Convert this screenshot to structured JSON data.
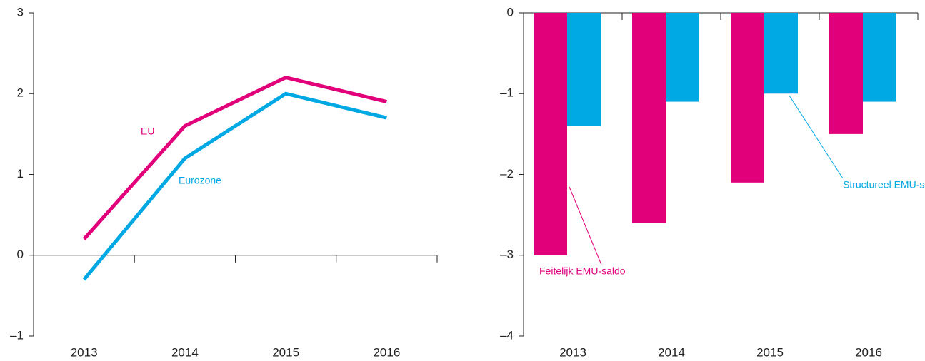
{
  "chart_data": [
    {
      "type": "line",
      "categories": [
        "2013",
        "2014",
        "2015",
        "2016"
      ],
      "series": [
        {
          "name": "EU",
          "color": "#e2007a",
          "values": [
            0.2,
            1.6,
            2.2,
            1.9
          ]
        },
        {
          "name": "Eurozone",
          "color": "#00a8e4",
          "values": [
            -0.3,
            1.2,
            2.0,
            1.7
          ]
        }
      ],
      "ylim": [
        -1,
        3
      ],
      "yticks": [
        {
          "value": -1,
          "label": "–1"
        },
        0,
        1,
        2,
        3
      ]
    },
    {
      "type": "bar",
      "categories": [
        "2013",
        "2014",
        "2015",
        "2016"
      ],
      "series": [
        {
          "name": "Feitelijk EMU-saldo",
          "color": "#e2007a",
          "values": [
            -3.0,
            -2.6,
            -2.1,
            -1.5
          ]
        },
        {
          "name": "Structureel EMU-saldo",
          "color": "#00a8e4",
          "values": [
            -1.4,
            -1.1,
            -1.0,
            -1.1
          ]
        }
      ],
      "ylim": [
        -4,
        0
      ],
      "yticks": [
        {
          "value": -4,
          "label": "–4"
        },
        {
          "value": -3,
          "label": "–3"
        },
        {
          "value": -2,
          "label": "–2"
        },
        {
          "value": -1,
          "label": "–1"
        },
        0
      ]
    }
  ]
}
